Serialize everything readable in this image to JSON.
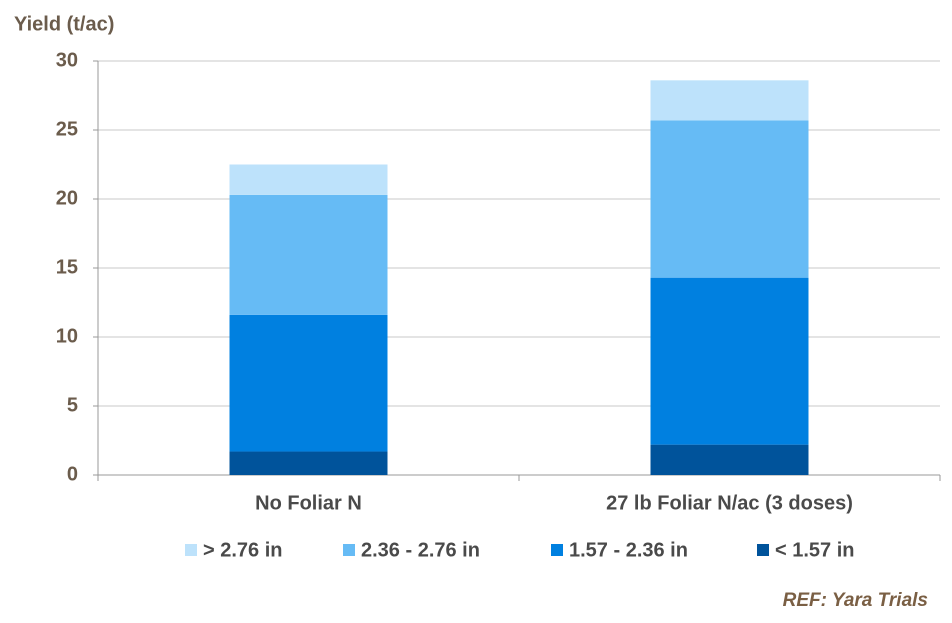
{
  "chart_data": {
    "type": "stacked_bar",
    "y_label": "Yield (t/ac)",
    "note": "REF: Yara Trials",
    "categories": [
      "No Foliar N",
      "27 lb Foliar N/ac (3 doses)"
    ],
    "series": [
      {
        "name": "< 1.57 in",
        "color": "#00539b",
        "values": [
          1.7,
          2.2
        ]
      },
      {
        "name": "1.57 - 2.36 in",
        "color": "#0080e0",
        "values": [
          9.9,
          12.1
        ]
      },
      {
        "name": "2.36 - 2.76 in",
        "color": "#66bbf5",
        "values": [
          8.7,
          11.4
        ]
      },
      {
        "name": "> 2.76 in",
        "color": "#bde2fb",
        "values": [
          2.2,
          2.9
        ]
      }
    ],
    "ylim": [
      0,
      30
    ],
    "yticks": [
      0,
      5,
      10,
      15,
      20,
      25,
      30
    ],
    "grid": true
  }
}
